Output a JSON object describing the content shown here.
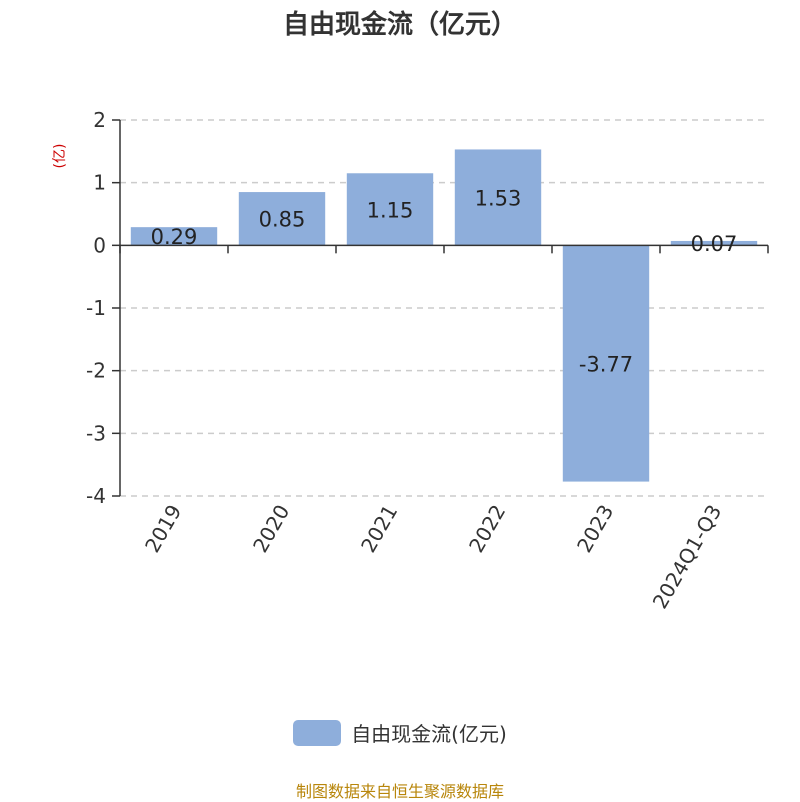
{
  "chart_data": {
    "type": "bar",
    "title": "自由现金流（亿元）",
    "ylabel": "(亿)",
    "categories": [
      "2019",
      "2020",
      "2021",
      "2022",
      "2023",
      "2024Q1-Q3"
    ],
    "series": [
      {
        "name": "自由现金流(亿元)",
        "values": [
          0.29,
          0.85,
          1.15,
          1.53,
          -3.77,
          0.07
        ]
      }
    ],
    "data_labels": [
      "0.29",
      "0.85",
      "1.15",
      "1.53",
      "-3.77",
      "0.07"
    ],
    "y_ticks": [
      2,
      1,
      0,
      -1,
      -2,
      -3,
      -4
    ],
    "y_tick_labels": [
      "2",
      "1",
      "0",
      "-1",
      "-2",
      "-3",
      "-4"
    ],
    "ylim": [
      -4,
      2
    ],
    "grid": true,
    "grid_style": "dashed",
    "legend_position": "bottom-center",
    "bar_color": "#8eaedb"
  },
  "source_note": "制图数据来自恒生聚源数据库"
}
